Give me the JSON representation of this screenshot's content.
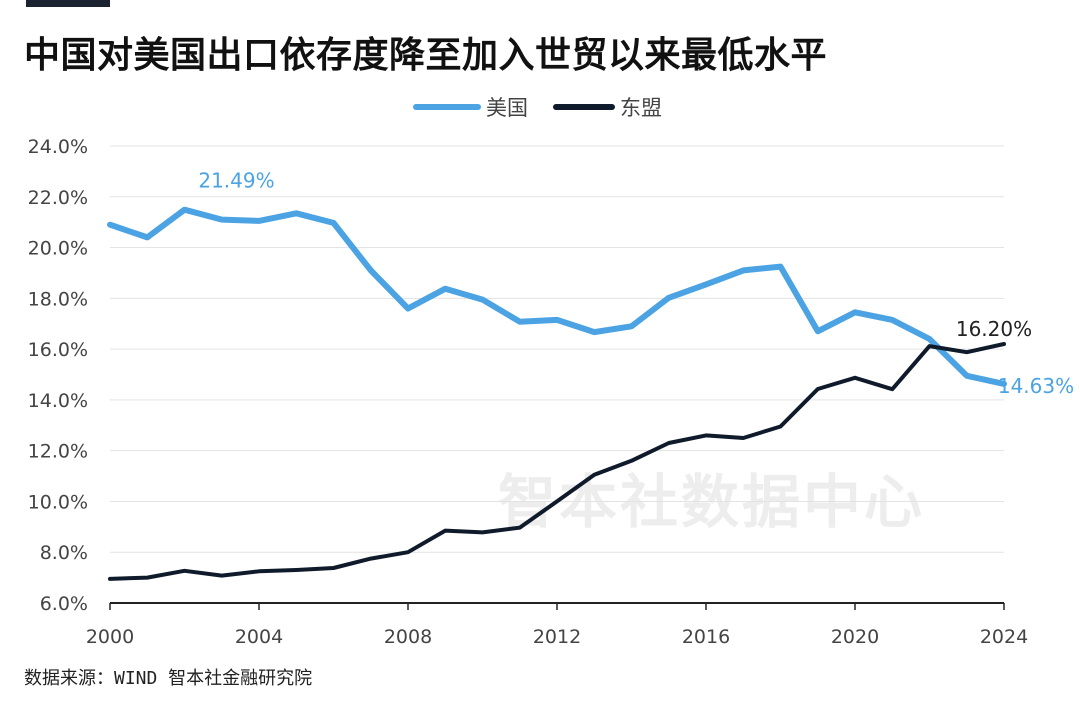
{
  "title": "中国对美国出口依存度降至加入世贸以来最低水平",
  "source": "数据来源：WIND 智本社金融研究院",
  "watermark": "智本社数据中心",
  "chart_data": {
    "type": "line",
    "x": [
      2000,
      2001,
      2002,
      2003,
      2004,
      2005,
      2006,
      2007,
      2008,
      2009,
      2010,
      2011,
      2012,
      2013,
      2014,
      2015,
      2016,
      2017,
      2018,
      2019,
      2020,
      2021,
      2022,
      2023,
      2024
    ],
    "x_tick_labels": [
      "2000",
      "2004",
      "2008",
      "2012",
      "2016",
      "2020",
      "2024"
    ],
    "y_tick_labels": [
      "6.0%",
      "8.0%",
      "10.0%",
      "12.0%",
      "14.0%",
      "16.0%",
      "18.0%",
      "20.0%",
      "22.0%",
      "24.0%"
    ],
    "ylim": [
      6,
      24
    ],
    "grid": true,
    "legend_position": "top-center",
    "series": [
      {
        "name": "美国",
        "color": "#4ba3e3",
        "values": [
          20.9,
          20.4,
          21.49,
          21.1,
          21.05,
          21.35,
          20.97,
          19.1,
          17.6,
          18.38,
          17.95,
          17.08,
          17.15,
          16.67,
          16.9,
          18.02,
          18.55,
          19.1,
          19.25,
          16.7,
          17.45,
          17.15,
          16.4,
          14.95,
          14.63
        ]
      },
      {
        "name": "东盟",
        "color": "#0f1b2b",
        "values": [
          6.95,
          7.0,
          7.27,
          7.08,
          7.25,
          7.3,
          7.38,
          7.75,
          8.0,
          8.85,
          8.78,
          8.97,
          10.0,
          11.05,
          11.6,
          12.3,
          12.6,
          12.5,
          12.95,
          14.43,
          14.87,
          14.42,
          16.12,
          15.88,
          16.2
        ]
      }
    ],
    "annotations": [
      {
        "series": 0,
        "index": 2,
        "text": "21.49%"
      },
      {
        "series": 0,
        "index": 24,
        "text": "14.63%"
      },
      {
        "series": 1,
        "index": 24,
        "text": "16.20%"
      }
    ]
  }
}
